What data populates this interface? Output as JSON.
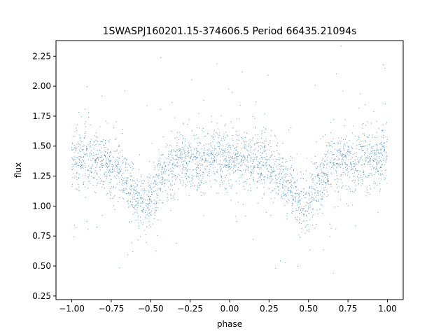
{
  "chart_data": {
    "type": "scatter",
    "title": "1SWASPJ160201.15-374606.5 Period 66435.21094s",
    "xlabel": "phase",
    "ylabel": "flux",
    "xlim": [
      -1.1,
      1.1
    ],
    "ylim": [
      0.22,
      2.38
    ],
    "xticks": [
      -1.0,
      -0.75,
      -0.5,
      -0.25,
      0.0,
      0.25,
      0.5,
      0.75,
      1.0
    ],
    "xtick_labels": [
      "−1.00",
      "−0.75",
      "−0.50",
      "−0.25",
      "0.00",
      "0.25",
      "0.50",
      "0.75",
      "1.00"
    ],
    "yticks": [
      0.25,
      0.5,
      0.75,
      1.0,
      1.25,
      1.5,
      1.75,
      2.0,
      2.25
    ],
    "ytick_labels": [
      "0.25",
      "0.50",
      "0.75",
      "1.00",
      "1.25",
      "1.50",
      "1.75",
      "2.00",
      "2.25"
    ],
    "grid": false,
    "legend": "none",
    "marker_color": "#1f77b4",
    "phase_range": [
      -1.0,
      1.0
    ],
    "series": [
      {
        "trend_x": [
          -1.0,
          -0.9,
          -0.8,
          -0.7,
          -0.65,
          -0.6,
          -0.55,
          -0.5,
          -0.45,
          -0.4,
          -0.35,
          -0.3,
          -0.25,
          -0.2,
          -0.1,
          0.0,
          0.1,
          0.2,
          0.3,
          0.35,
          0.4,
          0.45,
          0.5,
          0.55,
          0.6,
          0.65,
          0.7,
          0.8,
          0.9,
          1.0
        ],
        "trend_y": [
          1.4,
          1.38,
          1.36,
          1.3,
          1.2,
          1.08,
          1.02,
          1.05,
          1.18,
          1.3,
          1.36,
          1.38,
          1.38,
          1.37,
          1.4,
          1.41,
          1.38,
          1.36,
          1.3,
          1.22,
          1.1,
          1.02,
          1.04,
          1.16,
          1.28,
          1.35,
          1.38,
          1.38,
          1.39,
          1.4
        ],
        "scatter_sd": 0.12
      }
    ]
  }
}
